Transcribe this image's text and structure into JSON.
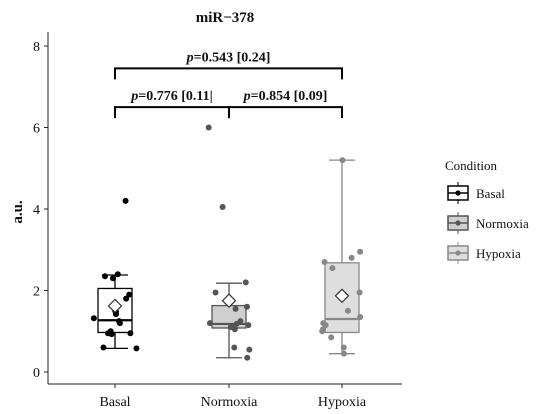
{
  "chart_data": {
    "type": "boxplot",
    "title": "miR−378",
    "ylabel": "a.u.",
    "xlabel": "",
    "ylim": [
      0,
      8
    ],
    "yticks": [
      0,
      2,
      4,
      6,
      8
    ],
    "categories": [
      "Basal",
      "Normoxia",
      "Hypoxia"
    ],
    "grid": false,
    "legend": {
      "title": "Condition",
      "position": "right",
      "entries": [
        "Basal",
        "Normoxia",
        "Hypoxia"
      ]
    },
    "colors": {
      "Basal": "#000000",
      "Normoxia": "#555555",
      "Hypoxia": "#888888"
    },
    "box_fill": {
      "Basal": "#ffffff",
      "Normoxia": "#cfcfcf",
      "Hypoxia": "#dedede"
    },
    "boxes": [
      {
        "name": "Basal",
        "whisker_low": 0.58,
        "q1": 0.97,
        "median": 1.27,
        "q3": 2.05,
        "whisker_high": 2.38,
        "mean": 1.62,
        "points": [
          4.2,
          2.4,
          2.3,
          2.35,
          1.9,
          1.8,
          1.5,
          1.48,
          1.42,
          1.32,
          1.25,
          1.2,
          1.0,
          0.95,
          0.95,
          0.93,
          0.6,
          0.58
        ]
      },
      {
        "name": "Normoxia",
        "whisker_low": 0.35,
        "q1": 1.08,
        "median": 1.18,
        "q3": 1.63,
        "whisker_high": 2.18,
        "mean": 1.75,
        "points": [
          6.0,
          4.05,
          2.2,
          1.95,
          1.6,
          1.55,
          1.25,
          1.2,
          1.18,
          1.15,
          1.12,
          1.1,
          1.05,
          0.6,
          0.55,
          0.35
        ]
      },
      {
        "name": "Hypoxia",
        "whisker_low": 0.45,
        "q1": 0.97,
        "median": 1.3,
        "q3": 2.68,
        "whisker_high": 5.2,
        "mean": 1.87,
        "points": [
          5.2,
          2.95,
          2.8,
          2.7,
          2.55,
          1.95,
          1.5,
          1.35,
          1.2,
          1.15,
          1.05,
          1.0,
          0.85,
          0.6,
          0.45
        ]
      }
    ],
    "comparisons": [
      {
        "from": "Basal",
        "to": "Normoxia",
        "label_p": "p",
        "label_rest": "=0.776 [0.11|",
        "y": 6.5
      },
      {
        "from": "Normoxia",
        "to": "Hypoxia",
        "label_p": "p",
        "label_rest": "=0.854 [0.09]",
        "y": 6.5
      },
      {
        "from": "Basal",
        "to": "Hypoxia",
        "label_p": "p",
        "label_rest": "=0.543 [0.24]",
        "y": 7.45
      }
    ]
  }
}
